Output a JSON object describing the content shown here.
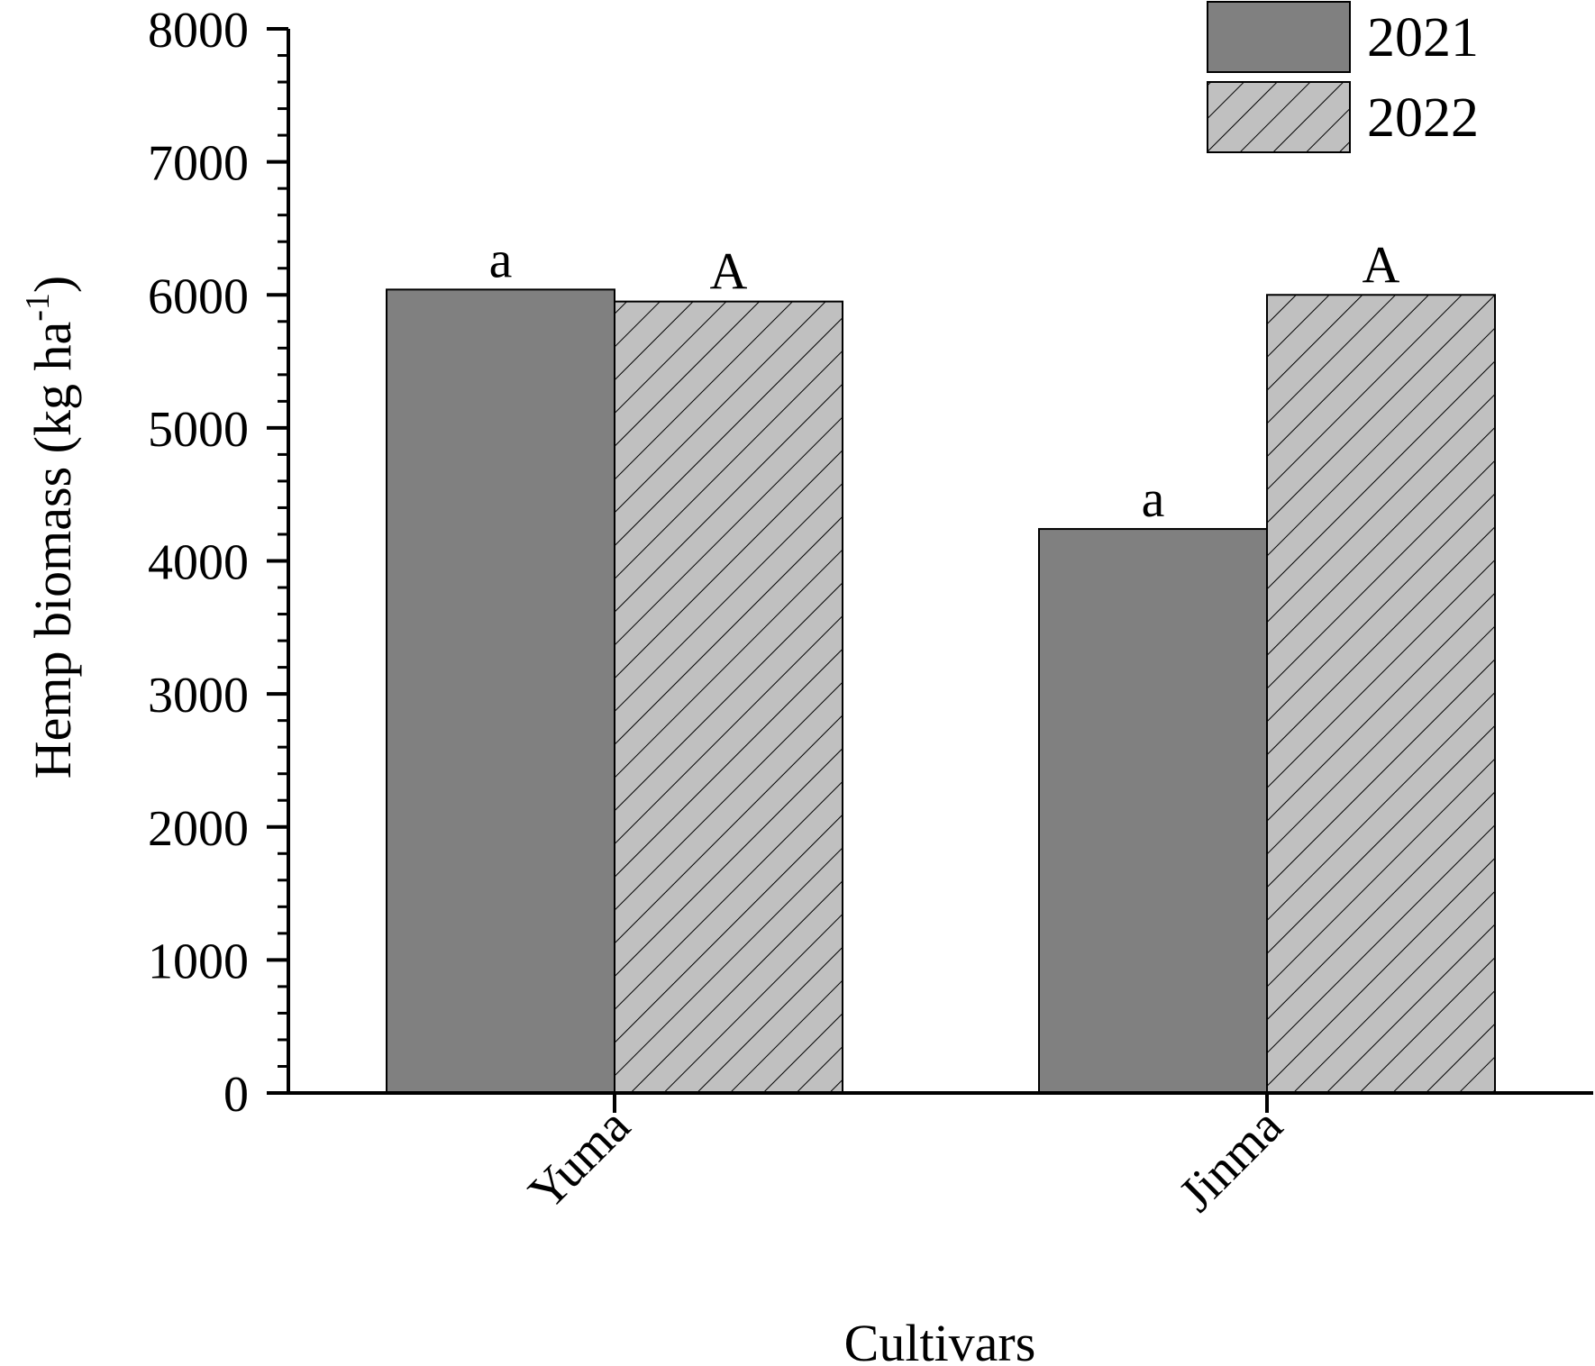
{
  "chart_data": {
    "type": "bar",
    "title": "",
    "xlabel": "Cultivars",
    "ylabel": {
      "main": "Hemp biomass (kg ha",
      "superscript": "-1",
      "close": ")"
    },
    "categories": [
      "Yuma",
      "Jinma"
    ],
    "series": [
      {
        "name": "2021",
        "values": [
          6040,
          4240
        ],
        "labels": [
          "a",
          "a"
        ],
        "color": "#808080",
        "pattern": "solid"
      },
      {
        "name": "2022",
        "values": [
          5950,
          6000
        ],
        "labels": [
          "A",
          "A"
        ],
        "color": "#c0c0c0",
        "pattern": "diagonal-hatch"
      }
    ],
    "ylim": [
      0,
      8000
    ],
    "yticks": [
      "0",
      "1000",
      "2000",
      "3000",
      "4000",
      "5000",
      "6000",
      "7000",
      "8000"
    ],
    "grid": false,
    "legend_position": "top-right"
  }
}
